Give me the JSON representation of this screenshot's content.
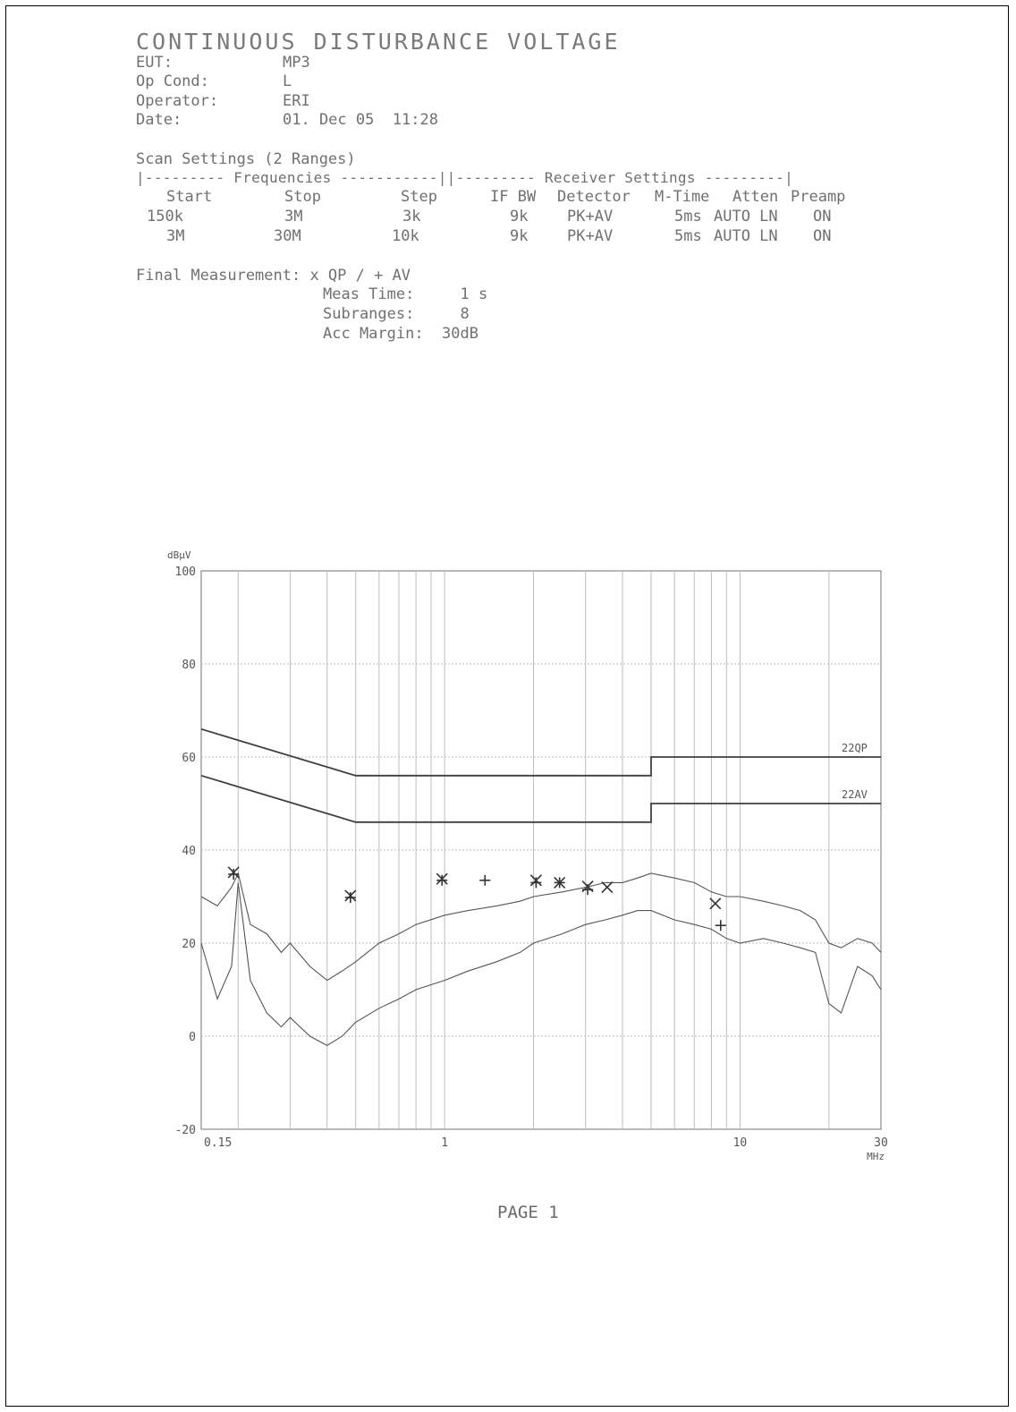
{
  "report": {
    "title": "CONTINUOUS DISTURBANCE VOLTAGE",
    "info": [
      {
        "label": "EUT:",
        "value": "MP3"
      },
      {
        "label": "Op Cond:",
        "value": "L"
      },
      {
        "label": "Operator:",
        "value": "ERI"
      },
      {
        "label": "Date:",
        "value": "01. Dec 05  11:28"
      }
    ],
    "scan_settings_title": "Scan Settings (2 Ranges)",
    "frequencies_header": "|--------- Frequencies -----------||--------- Receiver Settings ---------|",
    "columns": [
      "Start",
      "Stop",
      "Step",
      "IF BW",
      "Detector",
      "M-Time",
      "Atten",
      "Preamp"
    ],
    "ranges": [
      [
        "150k",
        "3M",
        "3k",
        "9k",
        "PK+AV",
        "5ms",
        "AUTO LN",
        "ON"
      ],
      [
        "3M",
        "30M",
        "10k",
        "9k",
        "PK+AV",
        "5ms",
        "AUTO LN",
        "ON"
      ]
    ],
    "final_measurement": "Final Measurement: x QP / + AV",
    "meas_time": "Meas Time:     1 s",
    "subranges": "Subranges:     8",
    "acc_margin": "Acc Margin:  30dB",
    "page": "PAGE 1"
  },
  "chart_data": {
    "type": "line",
    "y_unit": "dBµV",
    "x_unit": "MHz",
    "xscale": "log",
    "xlim": [
      0.15,
      30
    ],
    "ylim": [
      -20,
      100
    ],
    "x_ticks": [
      {
        "value": 0.15,
        "label": "0.15"
      },
      {
        "value": 1,
        "label": "1"
      },
      {
        "value": 10,
        "label": "10"
      },
      {
        "value": 30,
        "label": "30"
      }
    ],
    "y_ticks": [
      100,
      80,
      60,
      40,
      20,
      0,
      -20
    ],
    "grid": true,
    "series": [
      {
        "name": "22QP",
        "kind": "limit",
        "x": [
          0.15,
          0.5,
          0.5,
          5,
          5,
          30
        ],
        "y": [
          66,
          56,
          56,
          56,
          60,
          60
        ]
      },
      {
        "name": "22AV",
        "kind": "limit",
        "x": [
          0.15,
          0.5,
          0.5,
          5,
          5,
          30
        ],
        "y": [
          56,
          46,
          46,
          46,
          50,
          50
        ]
      },
      {
        "kind": "peak_trace",
        "x": [
          0.15,
          0.17,
          0.19,
          0.2,
          0.22,
          0.25,
          0.28,
          0.3,
          0.35,
          0.4,
          0.45,
          0.5,
          0.6,
          0.7,
          0.8,
          1.0,
          1.2,
          1.5,
          1.8,
          2.0,
          2.5,
          3.0,
          3.5,
          4.0,
          4.5,
          5.0,
          6.0,
          7.0,
          8.0,
          9.0,
          10,
          12,
          14,
          16,
          18,
          20,
          22,
          25,
          28,
          30
        ],
        "y": [
          30,
          28,
          32,
          35,
          24,
          22,
          18,
          20,
          15,
          12,
          14,
          16,
          20,
          22,
          24,
          26,
          27,
          28,
          29,
          30,
          31,
          32,
          33,
          33,
          34,
          35,
          34,
          33,
          31,
          30,
          30,
          29,
          28,
          27,
          25,
          20,
          19,
          21,
          20,
          18
        ]
      },
      {
        "kind": "average_trace",
        "x": [
          0.15,
          0.17,
          0.19,
          0.2,
          0.22,
          0.25,
          0.28,
          0.3,
          0.35,
          0.4,
          0.45,
          0.5,
          0.6,
          0.7,
          0.8,
          1.0,
          1.2,
          1.5,
          1.8,
          2.0,
          2.5,
          3.0,
          3.5,
          4.0,
          4.5,
          5.0,
          6.0,
          7.0,
          8.0,
          9.0,
          10,
          12,
          14,
          16,
          18,
          20,
          22,
          25,
          28,
          30
        ],
        "y": [
          20,
          8,
          15,
          33,
          12,
          5,
          2,
          4,
          0,
          -2,
          0,
          3,
          6,
          8,
          10,
          12,
          14,
          16,
          18,
          20,
          22,
          24,
          25,
          26,
          27,
          27,
          25,
          24,
          23,
          21,
          20,
          21,
          20,
          19,
          18,
          7,
          5,
          15,
          13,
          10
        ]
      },
      {
        "name": "QP",
        "kind": "markers",
        "marker": "x",
        "x": [
          0.193,
          0.48,
          0.98,
          2.04,
          2.45,
          3.05,
          3.55,
          8.25
        ],
        "y": [
          35.2,
          30.2,
          33.8,
          33.5,
          33.0,
          32.2,
          32.0,
          28.5
        ]
      },
      {
        "name": "AV",
        "kind": "markers",
        "marker": "+",
        "x": [
          0.193,
          0.48,
          0.98,
          1.37,
          2.04,
          2.45,
          3.05,
          8.6
        ],
        "y": [
          34.8,
          29.8,
          33.5,
          33.5,
          33.0,
          33.0,
          31.5,
          23.8
        ]
      }
    ]
  }
}
